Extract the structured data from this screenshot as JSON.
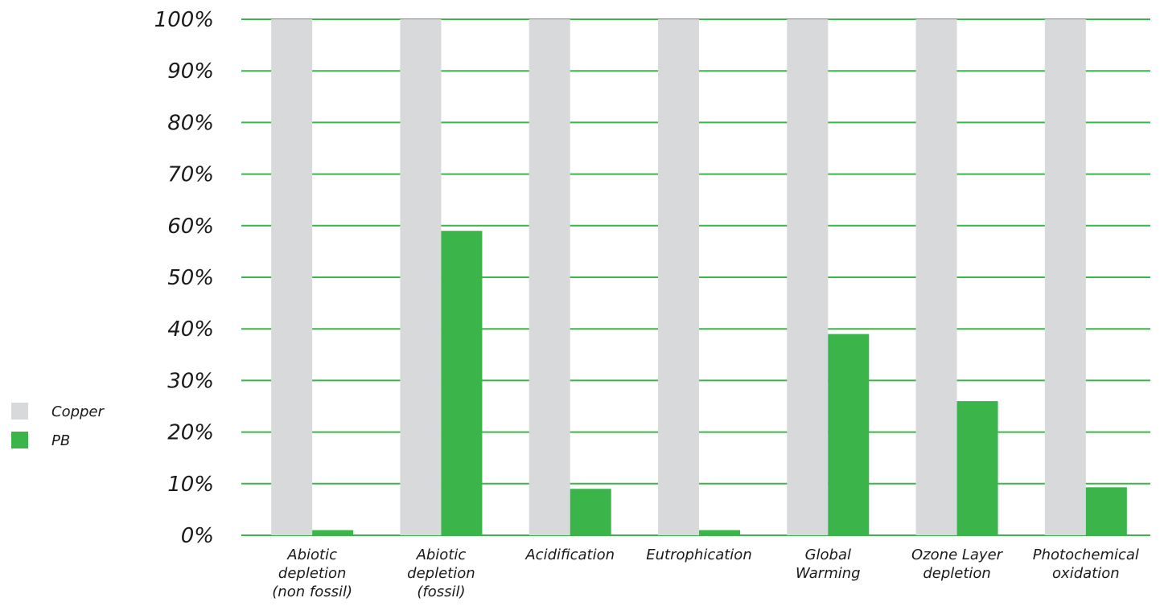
{
  "chart_data": {
    "type": "bar",
    "title": "",
    "xlabel": "",
    "ylabel": "",
    "ylim": [
      0,
      100
    ],
    "y_ticks": [
      "0%",
      "10%",
      "20%",
      "30%",
      "40%",
      "50%",
      "60%",
      "70%",
      "80%",
      "90%",
      "100%"
    ],
    "grid": true,
    "legend_position": "left",
    "categories": [
      [
        "Abiotic",
        "depletion",
        "(non fossil)"
      ],
      [
        "Abiotic",
        "depletion",
        "(fossil)"
      ],
      [
        "Acidification"
      ],
      [
        "Eutrophication"
      ],
      [
        "Global",
        "Warming"
      ],
      [
        "Ozone Layer",
        "depletion"
      ],
      [
        "Photochemical",
        "oxidation"
      ]
    ],
    "series": [
      {
        "name": "Copper",
        "color": "#d8d9db",
        "values": [
          100,
          100,
          100,
          100,
          100,
          100,
          100
        ]
      },
      {
        "name": "PB",
        "color": "#3bb54a",
        "values": [
          1,
          59,
          9,
          1,
          39,
          26,
          9.3
        ]
      }
    ],
    "gridline_color": "#3bb54a"
  }
}
